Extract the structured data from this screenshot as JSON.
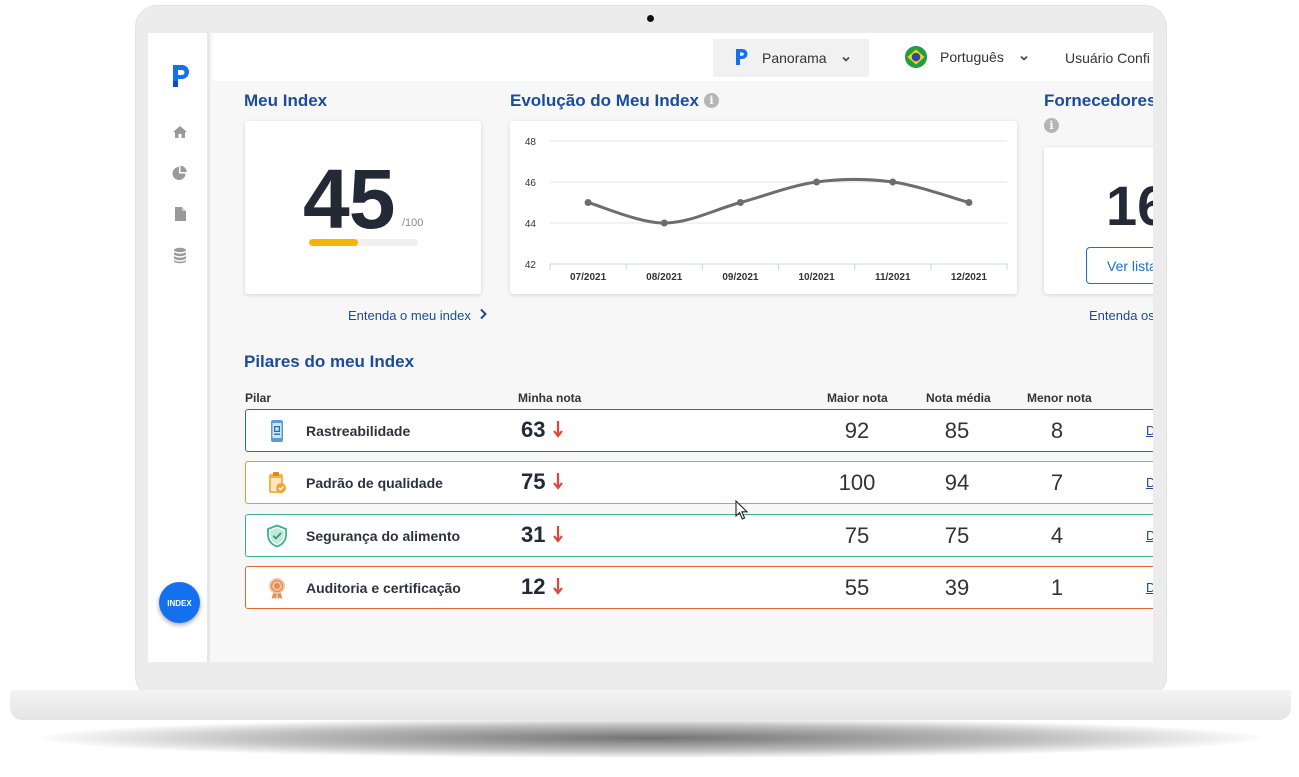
{
  "topbar": {
    "app_switcher_label": "Panorama",
    "language_label": "Português",
    "user_label": "Usuário Confi"
  },
  "meu_index": {
    "title": "Meu Index",
    "value": "45",
    "max_label": "/100",
    "progress": 0.45,
    "link_label": "Entenda o meu index"
  },
  "evolucao": {
    "title": "Evolução do Meu Index"
  },
  "fornecedores": {
    "title": "Fornecedores",
    "value": "16",
    "button_label": "Ver lista",
    "link_label": "Entenda os"
  },
  "chart_data": {
    "type": "line",
    "categories": [
      "07/2021",
      "08/2021",
      "09/2021",
      "10/2021",
      "11/2021",
      "12/2021"
    ],
    "values": [
      45,
      44,
      45,
      46,
      46,
      45
    ],
    "ylim": [
      42,
      48
    ],
    "yticks": [
      "42",
      "44",
      "46",
      "48"
    ],
    "grid": true,
    "line_color": "#6d6d6d"
  },
  "pilares": {
    "title": "Pilares do meu Index",
    "headers": {
      "pilar": "Pilar",
      "minha_nota": "Minha nota",
      "maior_nota": "Maior nota",
      "nota_media": "Nota média",
      "menor_nota": "Menor nota"
    },
    "rows": [
      {
        "name": "Rastreabilidade",
        "score": "63",
        "maior": "92",
        "media": "85",
        "menor": "8",
        "link": "D",
        "border_color": "#2a6ea6",
        "icon": "phone-scan-icon"
      },
      {
        "name": "Padrão de qualidade",
        "score": "75",
        "maior": "100",
        "media": "94",
        "menor": "7",
        "link": "D",
        "border_color": "#e59a2a",
        "icon": "clipboard-check-icon"
      },
      {
        "name": "Segurança do alimento",
        "score": "31",
        "maior": "75",
        "media": "75",
        "menor": "4",
        "link": "D",
        "border_color": "#3cb08a",
        "icon": "shield-check-icon"
      },
      {
        "name": "Auditoria e certificação",
        "score": "12",
        "maior": "55",
        "media": "39",
        "menor": "1",
        "link": "D",
        "border_color": "#d96a2b",
        "icon": "certificate-seal-icon"
      }
    ],
    "trend_color": "#e0453a"
  },
  "sidebar": {
    "index_button_label": "INDEX",
    "items": [
      "home-icon",
      "pie-chart-icon",
      "document-icon",
      "database-icon"
    ]
  },
  "colors": {
    "brand_blue": "#1570ef",
    "title_blue": "#1b4c9b",
    "progress_yellow": "#f5b400"
  }
}
